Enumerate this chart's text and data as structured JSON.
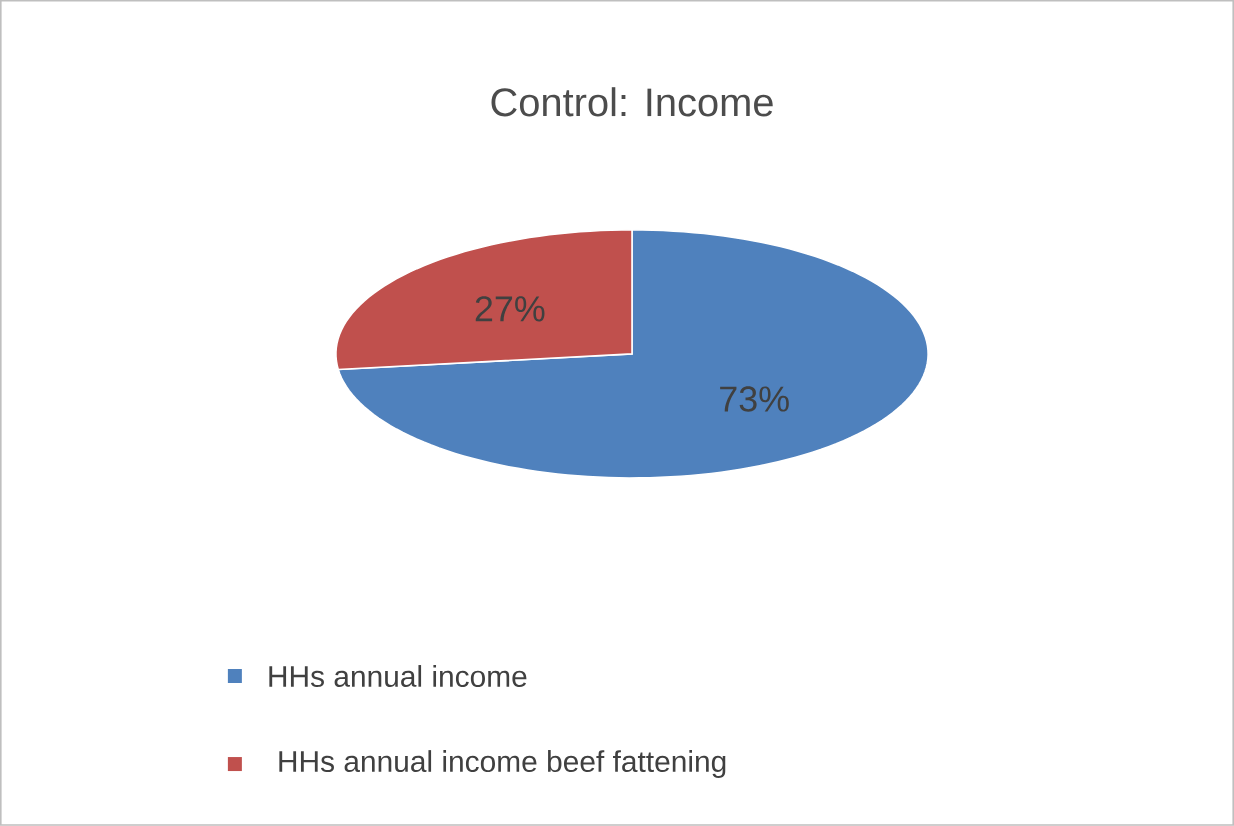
{
  "chart_data": {
    "type": "pie",
    "title": "Control: Income",
    "categories": [
      "HHs annual income",
      "HHs annual income beef fattening"
    ],
    "values": [
      73,
      27
    ],
    "colors": [
      "#4f81bd",
      "#c0504d"
    ],
    "value_labels": [
      "73%",
      "27%"
    ],
    "legend": "bottom"
  }
}
